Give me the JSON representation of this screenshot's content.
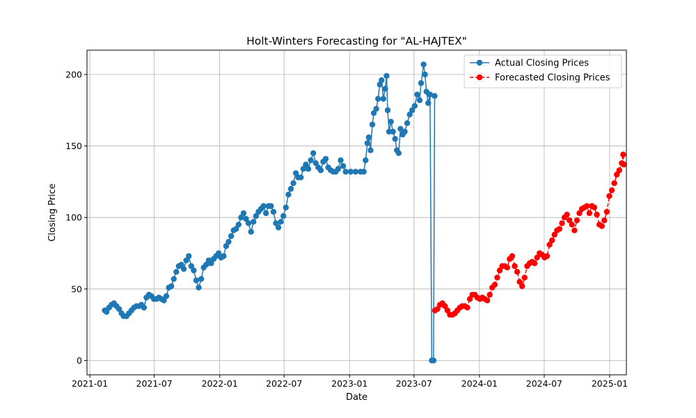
{
  "chart_data": {
    "type": "line",
    "title": "Holt-Winters Forecasting for \"AL-HAJTEX\"",
    "xlabel": "Date",
    "ylabel": "Closing Price",
    "x_ticks": [
      "2021-01",
      "2021-07",
      "2022-01",
      "2022-07",
      "2023-01",
      "2023-07",
      "2024-01",
      "2024-07",
      "2025-01"
    ],
    "y_ticks": [
      0,
      50,
      100,
      150,
      200
    ],
    "xlim": [
      "2020-12-24",
      "2025-02-17"
    ],
    "ylim": [
      -10,
      217
    ],
    "grid": true,
    "legend_position": "top-right",
    "series": [
      {
        "name": "Actual Closing Prices",
        "color": "#1f77b4",
        "line": "solid",
        "marker": "circle",
        "points": [
          [
            "2021-02-12",
            35
          ],
          [
            "2021-02-17",
            34
          ],
          [
            "2021-02-24",
            37
          ],
          [
            "2021-03-03",
            39
          ],
          [
            "2021-03-10",
            40
          ],
          [
            "2021-03-17",
            38
          ],
          [
            "2021-03-24",
            36
          ],
          [
            "2021-03-31",
            33
          ],
          [
            "2021-04-06",
            31
          ],
          [
            "2021-04-14",
            31
          ],
          [
            "2021-04-21",
            33
          ],
          [
            "2021-04-28",
            35
          ],
          [
            "2021-05-05",
            37
          ],
          [
            "2021-05-12",
            38
          ],
          [
            "2021-05-19",
            38
          ],
          [
            "2021-05-26",
            39
          ],
          [
            "2021-06-02",
            37
          ],
          [
            "2021-06-09",
            44
          ],
          [
            "2021-06-16",
            46
          ],
          [
            "2021-06-23",
            45
          ],
          [
            "2021-06-30",
            43
          ],
          [
            "2021-07-07",
            43
          ],
          [
            "2021-07-14",
            44
          ],
          [
            "2021-07-21",
            43
          ],
          [
            "2021-07-28",
            42
          ],
          [
            "2021-08-04",
            45
          ],
          [
            "2021-08-11",
            51
          ],
          [
            "2021-08-18",
            52
          ],
          [
            "2021-08-25",
            57
          ],
          [
            "2021-09-01",
            62
          ],
          [
            "2021-09-08",
            66
          ],
          [
            "2021-09-15",
            67
          ],
          [
            "2021-09-22",
            64
          ],
          [
            "2021-09-29",
            70
          ],
          [
            "2021-10-06",
            73
          ],
          [
            "2021-10-13",
            66
          ],
          [
            "2021-10-20",
            63
          ],
          [
            "2021-10-27",
            56
          ],
          [
            "2021-11-03",
            51
          ],
          [
            "2021-11-10",
            57
          ],
          [
            "2021-11-17",
            65
          ],
          [
            "2021-11-24",
            67
          ],
          [
            "2021-12-01",
            70
          ],
          [
            "2021-12-08",
            68
          ],
          [
            "2021-12-15",
            71
          ],
          [
            "2021-12-22",
            73
          ],
          [
            "2021-12-29",
            75
          ],
          [
            "2022-01-05",
            72
          ],
          [
            "2022-01-12",
            73
          ],
          [
            "2022-01-19",
            80
          ],
          [
            "2022-01-26",
            83
          ],
          [
            "2022-02-02",
            87
          ],
          [
            "2022-02-09",
            91
          ],
          [
            "2022-02-16",
            92
          ],
          [
            "2022-02-23",
            95
          ],
          [
            "2022-03-02",
            100
          ],
          [
            "2022-03-09",
            103
          ],
          [
            "2022-03-16",
            99
          ],
          [
            "2022-03-23",
            96
          ],
          [
            "2022-03-30",
            90
          ],
          [
            "2022-04-06",
            97
          ],
          [
            "2022-04-13",
            101
          ],
          [
            "2022-04-20",
            104
          ],
          [
            "2022-04-27",
            106
          ],
          [
            "2022-05-04",
            108
          ],
          [
            "2022-05-11",
            103
          ],
          [
            "2022-05-18",
            108
          ],
          [
            "2022-05-25",
            108
          ],
          [
            "2022-06-01",
            104
          ],
          [
            "2022-06-08",
            96
          ],
          [
            "2022-06-15",
            93
          ],
          [
            "2022-06-22",
            97
          ],
          [
            "2022-06-29",
            101
          ],
          [
            "2022-07-06",
            107
          ],
          [
            "2022-07-13",
            116
          ],
          [
            "2022-07-20",
            120
          ],
          [
            "2022-07-27",
            124
          ],
          [
            "2022-08-03",
            131
          ],
          [
            "2022-08-10",
            128
          ],
          [
            "2022-08-17",
            128
          ],
          [
            "2022-08-24",
            134
          ],
          [
            "2022-08-31",
            137
          ],
          [
            "2022-09-07",
            134
          ],
          [
            "2022-09-14",
            140
          ],
          [
            "2022-09-21",
            145
          ],
          [
            "2022-09-28",
            138
          ],
          [
            "2022-10-05",
            135
          ],
          [
            "2022-10-12",
            133
          ],
          [
            "2022-10-19",
            139
          ],
          [
            "2022-10-26",
            141
          ],
          [
            "2022-11-02",
            135
          ],
          [
            "2022-11-09",
            133
          ],
          [
            "2022-11-16",
            132
          ],
          [
            "2022-11-23",
            132
          ],
          [
            "2022-11-30",
            134
          ],
          [
            "2022-12-07",
            140
          ],
          [
            "2022-12-14",
            136
          ],
          [
            "2022-12-21",
            132
          ],
          [
            "2023-01-04",
            132
          ],
          [
            "2023-01-18",
            132
          ],
          [
            "2023-02-01",
            132
          ],
          [
            "2023-02-10",
            132
          ],
          [
            "2023-02-15",
            140
          ],
          [
            "2023-02-20",
            152
          ],
          [
            "2023-02-24",
            156
          ],
          [
            "2023-03-01",
            147
          ],
          [
            "2023-03-06",
            165
          ],
          [
            "2023-03-10",
            173
          ],
          [
            "2023-03-17",
            176
          ],
          [
            "2023-03-22",
            183
          ],
          [
            "2023-03-27",
            193
          ],
          [
            "2023-04-01",
            196
          ],
          [
            "2023-04-06",
            183
          ],
          [
            "2023-04-11",
            190
          ],
          [
            "2023-04-15",
            199
          ],
          [
            "2023-04-18",
            175
          ],
          [
            "2023-04-22",
            160
          ],
          [
            "2023-04-27",
            167
          ],
          [
            "2023-05-03",
            160
          ],
          [
            "2023-05-09",
            155
          ],
          [
            "2023-05-14",
            147
          ],
          [
            "2023-05-19",
            145
          ],
          [
            "2023-05-24",
            162
          ],
          [
            "2023-05-30",
            158
          ],
          [
            "2023-06-05",
            160
          ],
          [
            "2023-06-12",
            166
          ],
          [
            "2023-06-19",
            172
          ],
          [
            "2023-06-26",
            175
          ],
          [
            "2023-07-03",
            178
          ],
          [
            "2023-07-10",
            186
          ],
          [
            "2023-07-17",
            182
          ],
          [
            "2023-07-21",
            194
          ],
          [
            "2023-07-28",
            207
          ],
          [
            "2023-08-01",
            200
          ],
          [
            "2023-08-05",
            188
          ],
          [
            "2023-08-10",
            180
          ],
          [
            "2023-08-15",
            186
          ],
          [
            "2023-08-20",
            0
          ],
          [
            "2023-08-25",
            0
          ],
          [
            "2023-08-28",
            185
          ]
        ]
      },
      {
        "name": "Forecasted Closing Prices",
        "color": "#ff0000",
        "line": "dashed",
        "marker": "circle",
        "points": [
          [
            "2023-08-29",
            35
          ],
          [
            "2023-09-05",
            36
          ],
          [
            "2023-09-12",
            39
          ],
          [
            "2023-09-19",
            40
          ],
          [
            "2023-09-26",
            38
          ],
          [
            "2023-10-03",
            35
          ],
          [
            "2023-10-10",
            32
          ],
          [
            "2023-10-17",
            32
          ],
          [
            "2023-10-24",
            33
          ],
          [
            "2023-10-31",
            35
          ],
          [
            "2023-11-07",
            37
          ],
          [
            "2023-11-14",
            38
          ],
          [
            "2023-11-21",
            38
          ],
          [
            "2023-11-28",
            37
          ],
          [
            "2023-12-05",
            43
          ],
          [
            "2023-12-12",
            46
          ],
          [
            "2023-12-19",
            46
          ],
          [
            "2023-12-26",
            44
          ],
          [
            "2024-01-02",
            43
          ],
          [
            "2024-01-09",
            44
          ],
          [
            "2024-01-16",
            43
          ],
          [
            "2024-01-23",
            42
          ],
          [
            "2024-01-30",
            46
          ],
          [
            "2024-02-06",
            51
          ],
          [
            "2024-02-13",
            53
          ],
          [
            "2024-02-20",
            58
          ],
          [
            "2024-02-27",
            63
          ],
          [
            "2024-03-05",
            66
          ],
          [
            "2024-03-12",
            66
          ],
          [
            "2024-03-19",
            65
          ],
          [
            "2024-03-26",
            71
          ],
          [
            "2024-04-02",
            73
          ],
          [
            "2024-04-09",
            66
          ],
          [
            "2024-04-16",
            62
          ],
          [
            "2024-04-23",
            55
          ],
          [
            "2024-04-30",
            52
          ],
          [
            "2024-05-07",
            58
          ],
          [
            "2024-05-14",
            66
          ],
          [
            "2024-05-21",
            68
          ],
          [
            "2024-05-28",
            69
          ],
          [
            "2024-06-04",
            68
          ],
          [
            "2024-06-11",
            72
          ],
          [
            "2024-06-18",
            75
          ],
          [
            "2024-06-25",
            74
          ],
          [
            "2024-07-02",
            72
          ],
          [
            "2024-07-09",
            73
          ],
          [
            "2024-07-16",
            81
          ],
          [
            "2024-07-23",
            84
          ],
          [
            "2024-07-30",
            88
          ],
          [
            "2024-08-06",
            91
          ],
          [
            "2024-08-13",
            92
          ],
          [
            "2024-08-20",
            96
          ],
          [
            "2024-08-27",
            100
          ],
          [
            "2024-09-03",
            102
          ],
          [
            "2024-09-10",
            98
          ],
          [
            "2024-09-17",
            95
          ],
          [
            "2024-09-24",
            91
          ],
          [
            "2024-10-01",
            98
          ],
          [
            "2024-10-08",
            103
          ],
          [
            "2024-10-15",
            106
          ],
          [
            "2024-10-22",
            107
          ],
          [
            "2024-10-29",
            108
          ],
          [
            "2024-11-05",
            103
          ],
          [
            "2024-11-12",
            108
          ],
          [
            "2024-11-19",
            107
          ],
          [
            "2024-11-26",
            102
          ],
          [
            "2024-12-03",
            95
          ],
          [
            "2024-12-10",
            94
          ],
          [
            "2024-12-17",
            98
          ],
          [
            "2024-12-24",
            104
          ],
          [
            "2024-12-31",
            115
          ],
          [
            "2025-01-07",
            119
          ],
          [
            "2025-01-14",
            124
          ],
          [
            "2025-01-21",
            130
          ],
          [
            "2025-01-28",
            133
          ],
          [
            "2025-02-04",
            138
          ],
          [
            "2025-02-08",
            144
          ],
          [
            "2025-02-10",
            137
          ]
        ]
      }
    ]
  }
}
